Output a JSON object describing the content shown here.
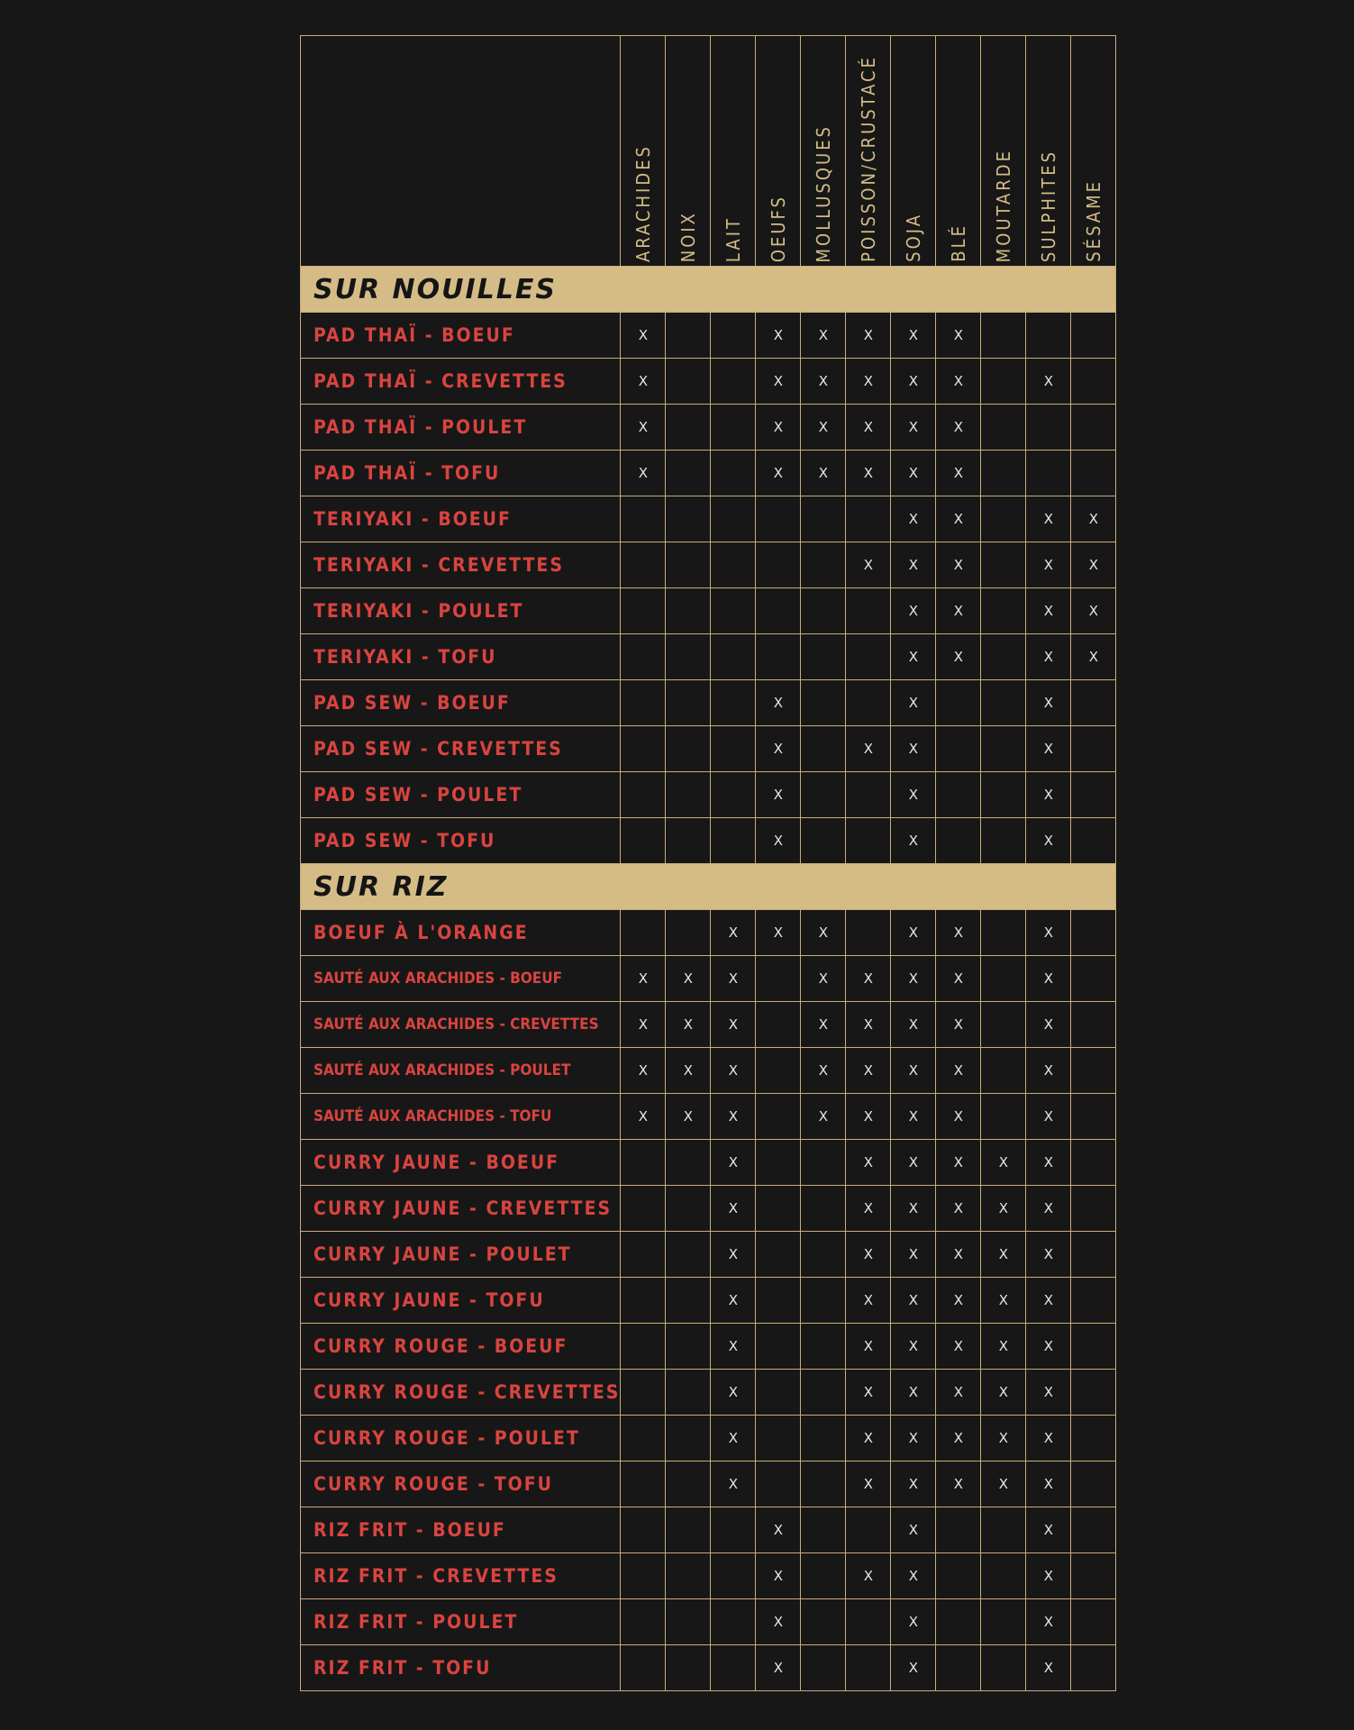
{
  "table": {
    "columns": [
      "ARACHIDES",
      "NOIX",
      "LAIT",
      "OEUFS",
      "MOLLUSQUES",
      "POISSON/CRUSTACÉ",
      "SOJA",
      "BLÉ",
      "MOUTARDE",
      "SULPHITES",
      "SÉSAME"
    ],
    "sections": [
      {
        "title": "SUR NOUILLES",
        "rows": [
          {
            "name": "PAD THAÏ - BOEUF",
            "cells": [
              "X",
              null,
              null,
              "X",
              "X",
              "X",
              "X",
              "X",
              null,
              null,
              null
            ]
          },
          {
            "name": "PAD THAÏ - CREVETTES",
            "cells": [
              "X",
              null,
              null,
              "X",
              "X",
              "X",
              "X",
              "X",
              null,
              "X",
              null
            ]
          },
          {
            "name": "PAD THAÏ - POULET",
            "cells": [
              "X",
              null,
              null,
              "X",
              "X",
              "X",
              "X",
              "X",
              null,
              null,
              null
            ]
          },
          {
            "name": "PAD THAÏ - TOFU",
            "cells": [
              "X",
              null,
              null,
              "X",
              "X",
              "X",
              "X",
              "X",
              null,
              null,
              null
            ]
          },
          {
            "name": "TERIYAKI - BOEUF",
            "cells": [
              null,
              null,
              null,
              null,
              null,
              null,
              "X",
              "X",
              null,
              "X",
              "X"
            ]
          },
          {
            "name": "TERIYAKI - CREVETTES",
            "cells": [
              null,
              null,
              null,
              null,
              null,
              "X",
              "X",
              "X",
              null,
              "X",
              "X"
            ]
          },
          {
            "name": "TERIYAKI - POULET",
            "cells": [
              null,
              null,
              null,
              null,
              null,
              null,
              "X",
              "X",
              null,
              "X",
              "X"
            ]
          },
          {
            "name": "TERIYAKI - TOFU",
            "cells": [
              null,
              null,
              null,
              null,
              null,
              null,
              "X",
              "X",
              null,
              "X",
              "X"
            ]
          },
          {
            "name": "PAD SEW - BOEUF",
            "cells": [
              null,
              null,
              null,
              "X",
              null,
              null,
              "X",
              null,
              null,
              "X",
              null
            ]
          },
          {
            "name": "PAD SEW - CREVETTES",
            "cells": [
              null,
              null,
              null,
              "X",
              null,
              "X",
              "X",
              null,
              null,
              "X",
              null
            ]
          },
          {
            "name": "PAD SEW - POULET",
            "cells": [
              null,
              null,
              null,
              "X",
              null,
              null,
              "X",
              null,
              null,
              "X",
              null
            ]
          },
          {
            "name": "PAD SEW - TOFU",
            "cells": [
              null,
              null,
              null,
              "X",
              null,
              null,
              "X",
              null,
              null,
              "X",
              null
            ]
          }
        ]
      },
      {
        "title": "SUR RIZ",
        "rows": [
          {
            "name": "BOEUF À L'ORANGE",
            "cells": [
              null,
              null,
              "X",
              "X",
              "X",
              null,
              "X",
              "X",
              null,
              "X",
              null
            ]
          },
          {
            "name": "SAUTÉ AUX ARACHIDES - BOEUF",
            "cells": [
              "X",
              "X",
              "X",
              null,
              "X",
              "X",
              "X",
              "X",
              null,
              "X",
              null
            ]
          },
          {
            "name": "SAUTÉ AUX ARACHIDES - CREVETTES",
            "cells": [
              "X",
              "X",
              "X",
              null,
              "X",
              "X",
              "X",
              "X",
              null,
              "X",
              null
            ]
          },
          {
            "name": "SAUTÉ AUX ARACHIDES - POULET",
            "cells": [
              "X",
              "X",
              "X",
              null,
              "X",
              "X",
              "X",
              "X",
              null,
              "X",
              null
            ]
          },
          {
            "name": "SAUTÉ AUX ARACHIDES - TOFU",
            "cells": [
              "X",
              "X",
              "X",
              null,
              "X",
              "X",
              "X",
              "X",
              null,
              "X",
              null
            ]
          },
          {
            "name": "CURRY JAUNE - BOEUF",
            "cells": [
              null,
              null,
              "X",
              null,
              null,
              "X",
              "X",
              "X",
              "X",
              "X",
              null
            ]
          },
          {
            "name": "CURRY JAUNE - CREVETTES",
            "cells": [
              null,
              null,
              "X",
              null,
              null,
              "X",
              "X",
              "X",
              "X",
              "X",
              null
            ]
          },
          {
            "name": "CURRY JAUNE - POULET",
            "cells": [
              null,
              null,
              "X",
              null,
              null,
              "X",
              "X",
              "X",
              "X",
              "X",
              null
            ]
          },
          {
            "name": "CURRY JAUNE - TOFU",
            "cells": [
              null,
              null,
              "X",
              null,
              null,
              "X",
              "X",
              "X",
              "X",
              "X",
              null
            ]
          },
          {
            "name": "CURRY ROUGE - BOEUF",
            "cells": [
              null,
              null,
              "X",
              null,
              null,
              "X",
              "X",
              "X",
              "X",
              "X",
              null
            ]
          },
          {
            "name": "CURRY ROUGE - CREVETTES",
            "cells": [
              null,
              null,
              "X",
              null,
              null,
              "X",
              "X",
              "X",
              "X",
              "X",
              null
            ]
          },
          {
            "name": "CURRY ROUGE - POULET",
            "cells": [
              null,
              null,
              "X",
              null,
              null,
              "X",
              "X",
              "X",
              "X",
              "X",
              null
            ]
          },
          {
            "name": "CURRY ROUGE - TOFU",
            "cells": [
              null,
              null,
              "X",
              null,
              null,
              "X",
              "X",
              "X",
              "X",
              "X",
              null
            ]
          },
          {
            "name": "RIZ FRIT - BOEUF",
            "cells": [
              null,
              null,
              null,
              "X",
              null,
              null,
              "X",
              null,
              null,
              "X",
              null
            ]
          },
          {
            "name": "RIZ FRIT - CREVETTES",
            "cells": [
              null,
              null,
              null,
              "X",
              null,
              "X",
              "X",
              null,
              null,
              "X",
              null
            ]
          },
          {
            "name": "RIZ FRIT - POULET",
            "cells": [
              null,
              null,
              null,
              "X",
              null,
              null,
              "X",
              null,
              null,
              "X",
              null
            ]
          },
          {
            "name": "RIZ FRIT - TOFU",
            "cells": [
              null,
              null,
              null,
              "X",
              null,
              null,
              "X",
              null,
              null,
              "X",
              null
            ]
          }
        ]
      }
    ]
  }
}
